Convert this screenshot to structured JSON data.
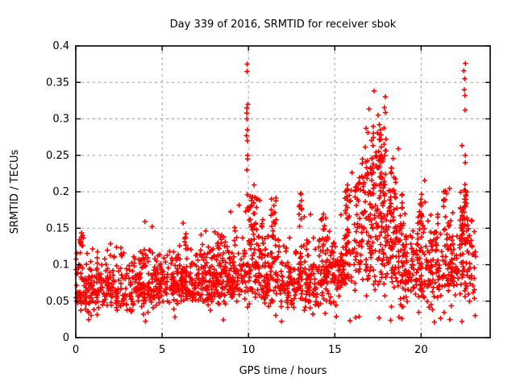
{
  "window": {
    "background_color": "#ffffff"
  },
  "chart_data": {
    "type": "scatter",
    "title": "Day 339 of 2016, SRMTID for receiver sbok",
    "xlabel": "GPS time / hours",
    "ylabel": "SRMTID / TECUs",
    "xlim": [
      0,
      24
    ],
    "ylim": [
      0,
      0.4
    ],
    "xticks": [
      0,
      5,
      10,
      15,
      20
    ],
    "xtick_labels": [
      "0",
      "5",
      "10",
      "15",
      "20"
    ],
    "yticks": [
      0,
      0.05,
      0.1,
      0.15,
      0.2,
      0.25,
      0.3,
      0.35,
      0.4
    ],
    "ytick_labels": [
      "0",
      "0.05",
      "0.1",
      "0.15",
      "0.2",
      "0.25",
      "0.3",
      "0.35",
      "0.4"
    ],
    "grid": true,
    "legend": "none",
    "marker": "plus",
    "marker_color": "#ff0000",
    "axis_color": "#000000",
    "grid_color": "#a0a0a0",
    "seed": 339,
    "x_start": 0.0,
    "x_end": 23.15,
    "n_baseline": 1900,
    "y_floor": 0.021,
    "envelope": [
      [
        0.0,
        0.068,
        0.02
      ],
      [
        1.0,
        0.062,
        0.018
      ],
      [
        2.0,
        0.068,
        0.018
      ],
      [
        3.0,
        0.07,
        0.019
      ],
      [
        4.0,
        0.071,
        0.02
      ],
      [
        5.0,
        0.076,
        0.018
      ],
      [
        6.0,
        0.076,
        0.02
      ],
      [
        7.0,
        0.078,
        0.021
      ],
      [
        8.0,
        0.08,
        0.022
      ],
      [
        9.0,
        0.082,
        0.022
      ],
      [
        9.8,
        0.088,
        0.026
      ],
      [
        10.4,
        0.105,
        0.032
      ],
      [
        11.0,
        0.085,
        0.025
      ],
      [
        11.5,
        0.098,
        0.03
      ],
      [
        12.0,
        0.076,
        0.022
      ],
      [
        12.6,
        0.076,
        0.022
      ],
      [
        13.0,
        0.088,
        0.028
      ],
      [
        13.5,
        0.072,
        0.022
      ],
      [
        14.0,
        0.08,
        0.024
      ],
      [
        14.5,
        0.088,
        0.026
      ],
      [
        15.0,
        0.085,
        0.025
      ],
      [
        15.6,
        0.105,
        0.032
      ],
      [
        16.0,
        0.108,
        0.034
      ],
      [
        16.5,
        0.125,
        0.042
      ],
      [
        17.0,
        0.148,
        0.05
      ],
      [
        17.6,
        0.158,
        0.054
      ],
      [
        18.0,
        0.132,
        0.046
      ],
      [
        18.5,
        0.118,
        0.04
      ],
      [
        19.0,
        0.086,
        0.026
      ],
      [
        19.5,
        0.09,
        0.028
      ],
      [
        20.0,
        0.098,
        0.032
      ],
      [
        20.5,
        0.086,
        0.028
      ],
      [
        21.0,
        0.086,
        0.028
      ],
      [
        21.5,
        0.098,
        0.032
      ],
      [
        22.0,
        0.094,
        0.03
      ],
      [
        22.5,
        0.115,
        0.038
      ],
      [
        23.2,
        0.088,
        0.026
      ]
    ],
    "bursts": [
      {
        "x0": 0.25,
        "x1": 0.45,
        "lo": 0.125,
        "hi": 0.145,
        "n": 8
      },
      {
        "x0": 6.3,
        "x1": 6.5,
        "lo": 0.12,
        "hi": 0.145,
        "n": 6
      },
      {
        "x0": 8.2,
        "x1": 8.45,
        "lo": 0.12,
        "hi": 0.15,
        "n": 6
      },
      {
        "x0": 10.05,
        "x1": 10.55,
        "lo": 0.13,
        "hi": 0.195,
        "n": 22
      },
      {
        "x0": 11.3,
        "x1": 11.6,
        "lo": 0.14,
        "hi": 0.195,
        "n": 12
      },
      {
        "x0": 12.9,
        "x1": 13.1,
        "lo": 0.13,
        "hi": 0.2,
        "n": 10
      },
      {
        "x0": 14.2,
        "x1": 14.5,
        "lo": 0.12,
        "hi": 0.175,
        "n": 10
      },
      {
        "x0": 15.5,
        "x1": 15.95,
        "lo": 0.13,
        "hi": 0.21,
        "n": 18
      },
      {
        "x0": 16.1,
        "x1": 16.45,
        "lo": 0.13,
        "hi": 0.22,
        "n": 14
      },
      {
        "x0": 16.55,
        "x1": 18.0,
        "lo": 0.15,
        "hi": 0.29,
        "n": 85
      },
      {
        "x0": 18.2,
        "x1": 18.6,
        "lo": 0.13,
        "hi": 0.25,
        "n": 22
      },
      {
        "x0": 18.85,
        "x1": 19.05,
        "lo": 0.12,
        "hi": 0.2,
        "n": 10
      },
      {
        "x0": 19.85,
        "x1": 20.15,
        "lo": 0.14,
        "hi": 0.2,
        "n": 12
      },
      {
        "x0": 20.8,
        "x1": 21.0,
        "lo": 0.12,
        "hi": 0.17,
        "n": 8
      },
      {
        "x0": 21.3,
        "x1": 21.65,
        "lo": 0.13,
        "hi": 0.21,
        "n": 12
      },
      {
        "x0": 22.3,
        "x1": 22.45,
        "lo": 0.13,
        "hi": 0.19,
        "n": 10
      },
      {
        "x0": 22.55,
        "x1": 22.8,
        "lo": 0.13,
        "hi": 0.2,
        "n": 10
      }
    ],
    "spikes": [
      {
        "x": 9.93,
        "jitter": 0.05,
        "values": [
          0.375,
          0.365,
          0.32,
          0.315,
          0.308,
          0.3,
          0.285,
          0.277,
          0.27,
          0.25,
          0.245,
          0.23,
          0.196,
          0.178
        ]
      },
      {
        "x": 17.6,
        "jitter": 0.15,
        "values": [
          0.305,
          0.292,
          0.285,
          0.278,
          0.272
        ]
      },
      {
        "x": 22.52,
        "jitter": 0.05,
        "values": [
          0.376,
          0.366,
          0.355,
          0.34,
          0.332,
          0.312,
          0.25,
          0.24,
          0.21,
          0.202,
          0.19,
          0.18,
          0.172,
          0.163,
          0.155
        ]
      }
    ]
  }
}
